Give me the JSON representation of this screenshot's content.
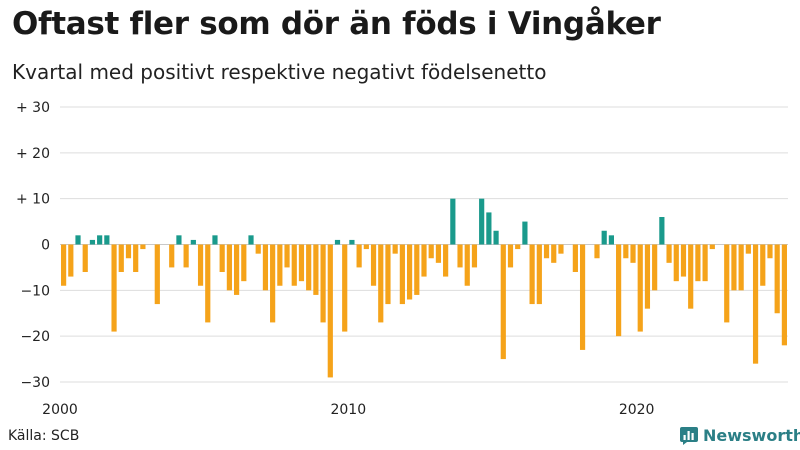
{
  "header": {
    "title": "Oftast fler som dör än föds i Vingåker",
    "subtitle": "Kvartal med positivt respektive negativt födelsenetto"
  },
  "footer": {
    "source": "Källa: SCB",
    "brand": "Newsworthy"
  },
  "colors": {
    "positive": "#1a9a8c",
    "negative": "#f5a31a",
    "grid": "#dddddd",
    "brand": "#2b7f86"
  },
  "chart_data": {
    "type": "bar",
    "title": "Oftast fler som dör än föds i Vingåker",
    "subtitle": "Kvartal med positivt respektive negativt födelsenetto",
    "xlabel": "",
    "ylabel": "",
    "ylim": [
      -30,
      30
    ],
    "yticks": [
      {
        "value": 30,
        "label": "+ 30"
      },
      {
        "value": 20,
        "label": "+ 20"
      },
      {
        "value": 10,
        "label": "+ 10"
      },
      {
        "value": 0,
        "label": "0"
      },
      {
        "value": -10,
        "label": "−10"
      },
      {
        "value": -20,
        "label": "−20"
      },
      {
        "value": -30,
        "label": "−30"
      }
    ],
    "xticks": [
      {
        "value": 2000,
        "label": "2000"
      },
      {
        "value": 2010,
        "label": "2010"
      },
      {
        "value": 2020,
        "label": "2020"
      }
    ],
    "start_year": 2000,
    "quarters_per_year": 4,
    "grid": true,
    "values": [
      -9,
      -7,
      2,
      -6,
      1,
      2,
      2,
      -19,
      -6,
      -3,
      -6,
      -1,
      0,
      -13,
      0,
      -5,
      2,
      -5,
      1,
      -9,
      -17,
      2,
      -6,
      -10,
      -11,
      -8,
      2,
      -2,
      -10,
      -17,
      -9,
      -5,
      -9,
      -8,
      -10,
      -11,
      -17,
      -29,
      1,
      -19,
      1,
      -5,
      -1,
      -9,
      -17,
      -13,
      -2,
      -13,
      -12,
      -11,
      -7,
      -3,
      -4,
      -7,
      10,
      -5,
      -9,
      -5,
      10,
      7,
      3,
      -25,
      -5,
      -1,
      5,
      -13,
      -13,
      -3,
      -4,
      -2,
      0,
      -6,
      -23,
      0,
      -3,
      3,
      2,
      -20,
      -3,
      -4,
      -19,
      -14,
      -10,
      6,
      -4,
      -8,
      -7,
      -14,
      -8,
      -8,
      -1,
      0,
      -17,
      -10,
      -10,
      -2,
      -26,
      -9,
      -3,
      -15,
      -22
    ]
  }
}
